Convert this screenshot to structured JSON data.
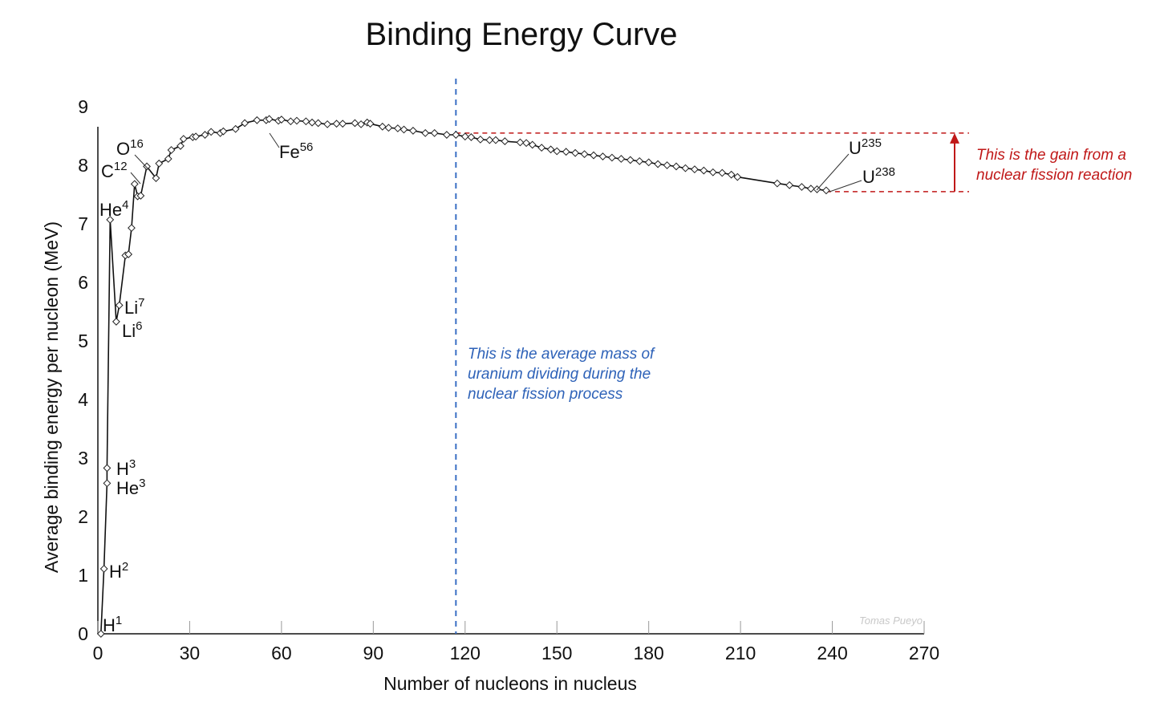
{
  "chart_data": {
    "type": "line",
    "title": "Binding Energy Curve",
    "xlabel": "Number of nucleons in nucleus",
    "ylabel": "Average binding energy per nucleon (MeV)",
    "xlim": [
      0,
      270
    ],
    "ylim": [
      0,
      9
    ],
    "x_ticks": [
      "0",
      "30",
      "60",
      "90",
      "120",
      "150",
      "180",
      "210",
      "240",
      "270"
    ],
    "y_ticks": [
      "0",
      "1",
      "2",
      "3",
      "4",
      "5",
      "6",
      "7",
      "8",
      "9"
    ],
    "series": [
      {
        "points": [
          [
            1,
            0
          ],
          [
            2,
            1.11
          ],
          [
            3,
            2.57
          ],
          [
            3,
            2.83
          ],
          [
            4,
            7.07
          ],
          [
            6,
            5.33
          ],
          [
            7,
            5.61
          ],
          [
            9,
            6.46
          ],
          [
            10,
            6.48
          ],
          [
            11,
            6.93
          ],
          [
            12,
            7.68
          ],
          [
            13,
            7.47
          ],
          [
            14,
            7.48
          ],
          [
            16,
            7.98
          ],
          [
            19,
            7.78
          ],
          [
            20,
            8.03
          ],
          [
            23,
            8.11
          ],
          [
            24,
            8.26
          ],
          [
            27,
            8.33
          ],
          [
            28,
            8.45
          ],
          [
            31,
            8.48
          ],
          [
            32,
            8.49
          ],
          [
            35,
            8.52
          ],
          [
            37,
            8.57
          ],
          [
            40,
            8.55
          ],
          [
            41,
            8.58
          ],
          [
            45,
            8.62
          ],
          [
            48,
            8.72
          ],
          [
            52,
            8.77
          ],
          [
            55,
            8.77
          ],
          [
            56,
            8.79
          ],
          [
            59,
            8.76
          ],
          [
            60,
            8.78
          ],
          [
            63,
            8.75
          ],
          [
            65,
            8.76
          ],
          [
            68,
            8.75
          ],
          [
            70,
            8.73
          ],
          [
            72,
            8.72
          ],
          [
            75,
            8.7
          ],
          [
            78,
            8.71
          ],
          [
            80,
            8.71
          ],
          [
            84,
            8.72
          ],
          [
            86,
            8.7
          ],
          [
            88,
            8.73
          ],
          [
            89,
            8.71
          ],
          [
            93,
            8.66
          ],
          [
            95,
            8.64
          ],
          [
            98,
            8.63
          ],
          [
            100,
            8.61
          ],
          [
            103,
            8.59
          ],
          [
            107,
            8.55
          ],
          [
            110,
            8.55
          ],
          [
            114,
            8.52
          ],
          [
            117,
            8.52
          ],
          [
            120,
            8.49
          ],
          [
            122,
            8.48
          ],
          [
            125,
            8.44
          ],
          [
            128,
            8.43
          ],
          [
            130,
            8.43
          ],
          [
            133,
            8.41
          ],
          [
            138,
            8.39
          ],
          [
            140,
            8.38
          ],
          [
            142,
            8.35
          ],
          [
            145,
            8.3
          ],
          [
            148,
            8.27
          ],
          [
            150,
            8.24
          ],
          [
            153,
            8.23
          ],
          [
            156,
            8.21
          ],
          [
            159,
            8.19
          ],
          [
            162,
            8.17
          ],
          [
            165,
            8.15
          ],
          [
            168,
            8.13
          ],
          [
            171,
            8.11
          ],
          [
            174,
            8.09
          ],
          [
            177,
            8.07
          ],
          [
            180,
            8.05
          ],
          [
            183,
            8.02
          ],
          [
            186,
            8.0
          ],
          [
            189,
            7.98
          ],
          [
            192,
            7.95
          ],
          [
            195,
            7.93
          ],
          [
            198,
            7.91
          ],
          [
            201,
            7.88
          ],
          [
            204,
            7.87
          ],
          [
            207,
            7.84
          ],
          [
            209,
            7.8
          ],
          [
            222,
            7.69
          ],
          [
            226,
            7.66
          ],
          [
            230,
            7.63
          ],
          [
            233,
            7.6
          ],
          [
            235,
            7.59
          ],
          [
            238,
            7.57
          ]
        ]
      }
    ],
    "labels": [
      {
        "id": "h1",
        "base": "H",
        "sup": "1"
      },
      {
        "id": "h2",
        "base": "H",
        "sup": "2"
      },
      {
        "id": "h3",
        "base": "H",
        "sup": "3"
      },
      {
        "id": "he3",
        "base": "He",
        "sup": "3"
      },
      {
        "id": "he4",
        "base": "He",
        "sup": "4"
      },
      {
        "id": "li6",
        "base": "Li",
        "sup": "6"
      },
      {
        "id": "li7",
        "base": "Li",
        "sup": "7"
      },
      {
        "id": "c12",
        "base": "C",
        "sup": "12"
      },
      {
        "id": "o16",
        "base": "O",
        "sup": "16"
      },
      {
        "id": "fe56",
        "base": "Fe",
        "sup": "56"
      },
      {
        "id": "u235",
        "base": "U",
        "sup": "235"
      },
      {
        "id": "u238",
        "base": "U",
        "sup": "238"
      }
    ],
    "annotations": {
      "avg_mass_x": 117,
      "fission_note": [
        "This is the average mass of",
        "uranium dividing during the",
        "nuclear fission process"
      ],
      "gain_top": 8.55,
      "gain_bottom": 7.55,
      "gain_note": [
        "This is the gain from a",
        "nuclear fission reaction"
      ],
      "credit": "Tomas Pueyo"
    },
    "colors": {
      "line": "#111111",
      "avg_line": "#3a6fc4",
      "gain": "#c01818"
    },
    "grid": false
  }
}
